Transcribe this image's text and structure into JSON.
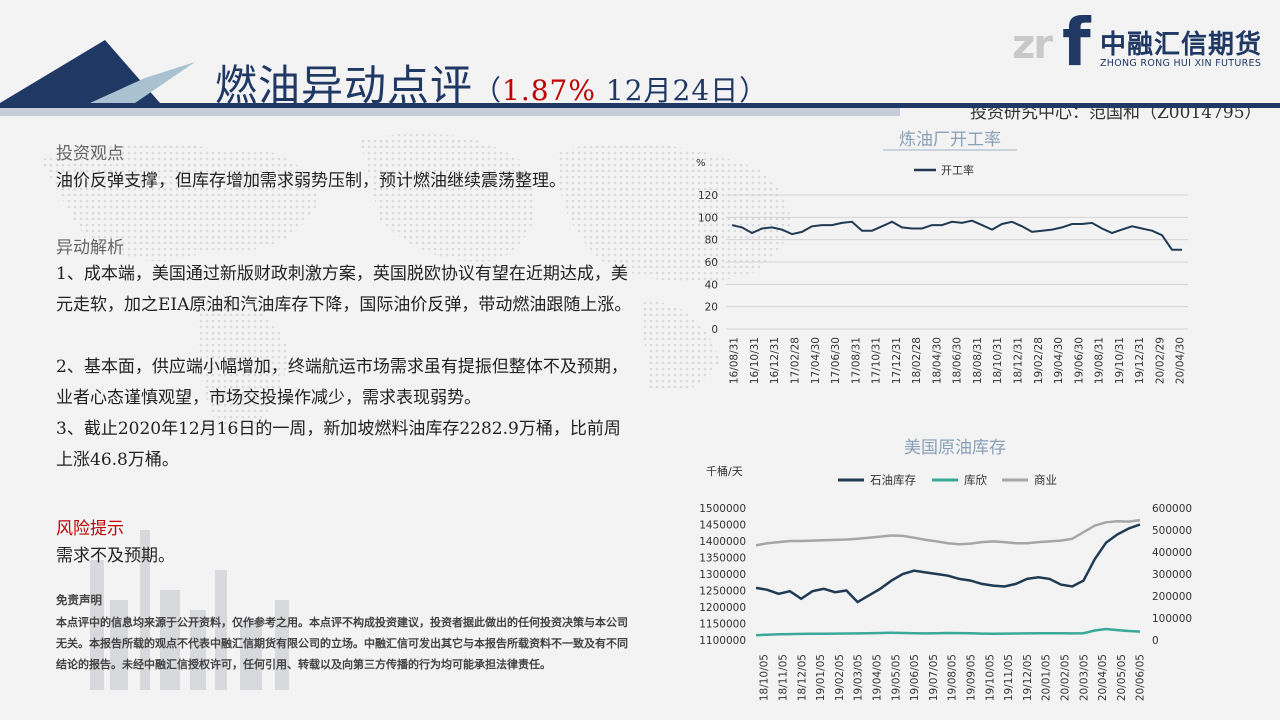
{
  "header": {
    "title_main": "燃油异动点评",
    "title_paren_open": "（",
    "title_change": "1.87%",
    "title_date": " 12月24日",
    "title_paren_close": "）",
    "logo_mark": "zr",
    "logo_letter": "f",
    "logo_cn": "中融汇信期货",
    "logo_en": "ZHONG RONG HUI XIN FUTURES",
    "author": "投资研究中心：范国和（Z0014795）"
  },
  "body": {
    "view_heading": "投资观点",
    "view_text": "油价反弹支撑，但库存增加需求弱势压制，预计燃油继续震荡整理。",
    "analysis_heading": "异动解析",
    "analysis_1": "1、成本端，美国通过新版财政刺激方案，英国脱欧协议有望在近期达成，美元走软，加之EIA原油和汽油库存下降，国际油价反弹，带动燃油跟随上涨。",
    "analysis_2": "2、基本面，供应端小幅增加，终端航运市场需求虽有提振但整体不及预期，业者心态谨慎观望，市场交投操作减少，需求表现弱势。",
    "analysis_3": "3、截止2020年12月16日的一周，新加坡燃料油库存2282.9万桶，比前周上涨46.8万桶。",
    "risk_heading": "风险提示",
    "risk_text": "需求不及预期。",
    "disclaimer_heading": "免责声明",
    "disclaimer_text": "本点评中的信息均来源于公开资料，仅作参考之用。本点评不构成投资建议，投资者据此做出的任何投资决策与本公司无关。本报告所载的观点不代表中融汇信期货有限公司的立场。中融汇信可发出其它与本报告所载资料不一致及有不同结论的报告。未经中融汇信授权许可，任何引用、转载以及向第三方传播的行为均可能承担法律责任。"
  },
  "colors": {
    "navy": "#1f3864",
    "red": "#c00000",
    "series_dark": "#1f3a52",
    "series_teal": "#3aa89a",
    "series_gray": "#a6a6a6"
  },
  "chart_data": [
    {
      "type": "line",
      "title": "炼油厂开工率",
      "ylabel": "%",
      "ylim": [
        0,
        120
      ],
      "yticks": [
        0,
        20,
        40,
        60,
        80,
        100,
        120
      ],
      "grid": true,
      "legend": "top-left",
      "x_ticks": [
        "16/08/31",
        "16/10/31",
        "16/12/31",
        "17/02/28",
        "17/04/30",
        "17/06/30",
        "17/08/31",
        "17/10/31",
        "17/12/31",
        "18/02/28",
        "18/04/30",
        "18/06/30",
        "18/08/31",
        "18/10/31",
        "18/12/31",
        "19/02/28",
        "19/04/30",
        "19/06/30",
        "19/08/31",
        "19/10/31",
        "19/12/31",
        "20/02/29",
        "20/04/30"
      ],
      "series": [
        {
          "name": "开工率",
          "values": [
            93,
            91,
            86,
            90,
            91,
            89,
            85,
            87,
            92,
            93,
            93,
            95,
            96,
            88,
            88,
            92,
            96,
            91,
            90,
            90,
            93,
            93,
            96,
            95,
            97,
            93,
            89,
            94,
            96,
            92,
            87,
            88,
            89,
            91,
            94,
            94,
            95,
            90,
            86,
            89,
            92,
            90,
            88,
            84,
            71,
            71
          ]
        }
      ]
    },
    {
      "type": "line",
      "title": "美国原油库存",
      "ylabel": "千桶/天",
      "ylim": [
        1100000,
        1500000
      ],
      "yticks": [
        1100000,
        1150000,
        1200000,
        1250000,
        1300000,
        1350000,
        1400000,
        1450000,
        1500000
      ],
      "y2lim": [
        0,
        600000
      ],
      "y2ticks": [
        0,
        100000,
        200000,
        300000,
        400000,
        500000,
        600000
      ],
      "grid": false,
      "legend": "top",
      "x_ticks": [
        "18/10/05",
        "18/11/05",
        "18/12/05",
        "19/01/05",
        "19/02/05",
        "19/03/05",
        "19/04/05",
        "19/05/05",
        "19/06/05",
        "19/07/05",
        "19/08/05",
        "19/09/05",
        "19/10/05",
        "19/11/05",
        "19/12/05",
        "20/01/05",
        "20/02/05",
        "20/03/05",
        "20/04/05",
        "20/05/05",
        "20/06/05"
      ],
      "series": [
        {
          "name": "石油库存",
          "axis": "left",
          "values": [
            1258000,
            1252000,
            1240000,
            1248000,
            1225000,
            1248000,
            1255000,
            1245000,
            1250000,
            1215000,
            1235000,
            1255000,
            1280000,
            1300000,
            1310000,
            1305000,
            1300000,
            1295000,
            1285000,
            1280000,
            1270000,
            1265000,
            1262000,
            1270000,
            1285000,
            1290000,
            1285000,
            1268000,
            1262000,
            1280000,
            1345000,
            1395000,
            1420000,
            1438000,
            1450000
          ]
        },
        {
          "name": "库欣",
          "axis": "right",
          "values": [
            22000,
            24000,
            26000,
            27000,
            27500,
            28000,
            28500,
            29000,
            29500,
            30000,
            31000,
            32000,
            33000,
            32000,
            31000,
            30000,
            31000,
            32000,
            31500,
            30500,
            29000,
            28500,
            29000,
            29500,
            30000,
            30500,
            31000,
            30500,
            30000,
            31000,
            43000,
            50000,
            45000,
            41000,
            38000
          ]
        },
        {
          "name": "商业",
          "axis": "right",
          "values": [
            430000,
            440000,
            445000,
            450000,
            450000,
            452000,
            453000,
            455000,
            457000,
            460000,
            465000,
            470000,
            475000,
            473000,
            465000,
            455000,
            448000,
            440000,
            435000,
            438000,
            445000,
            448000,
            445000,
            440000,
            440000,
            445000,
            448000,
            452000,
            460000,
            490000,
            520000,
            535000,
            540000,
            538000,
            545000
          ]
        }
      ]
    }
  ]
}
